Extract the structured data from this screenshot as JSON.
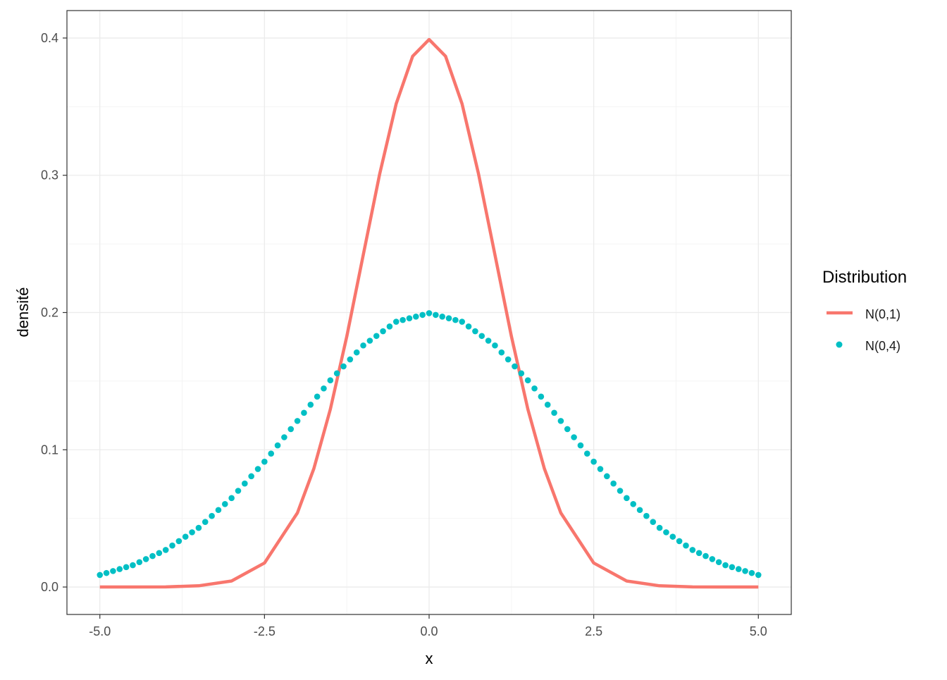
{
  "chart_data": {
    "type": "line",
    "xlabel": "x",
    "ylabel": "densité",
    "xlim": [
      -5.5,
      5.5
    ],
    "ylim": [
      -0.02,
      0.42
    ],
    "x_ticks": [
      -5.0,
      -2.5,
      0.0,
      2.5,
      5.0
    ],
    "x_tick_labels": [
      "-5.0",
      "-2.5",
      "0.0",
      "2.5",
      "5.0"
    ],
    "y_ticks": [
      0.0,
      0.1,
      0.2,
      0.3,
      0.4
    ],
    "y_tick_labels": [
      "0.0",
      "0.1",
      "0.2",
      "0.3",
      "0.4"
    ],
    "grid": true,
    "legend": {
      "title": "Distribution",
      "position": "right",
      "entries": [
        "N(0,1)",
        "N(0,4)"
      ]
    },
    "series": [
      {
        "name": "N(0,1)",
        "style": "line",
        "color": "#F8766D",
        "x": [
          -5.0,
          -4.5,
          -4.0,
          -3.5,
          -3.0,
          -2.5,
          -2.0,
          -1.75,
          -1.5,
          -1.25,
          -1.0,
          -0.75,
          -0.5,
          -0.25,
          0.0,
          0.25,
          0.5,
          0.75,
          1.0,
          1.25,
          1.5,
          1.75,
          2.0,
          2.5,
          3.0,
          3.5,
          4.0,
          4.5,
          5.0
        ],
        "y": [
          0.0,
          0.0,
          0.0001,
          0.0009,
          0.0044,
          0.0175,
          0.054,
          0.0863,
          0.1295,
          0.1826,
          0.242,
          0.3011,
          0.3521,
          0.3867,
          0.3989,
          0.3867,
          0.3521,
          0.3011,
          0.242,
          0.1826,
          0.1295,
          0.0863,
          0.054,
          0.0175,
          0.0044,
          0.0009,
          0.0001,
          0.0,
          0.0
        ]
      },
      {
        "name": "N(0,4)",
        "style": "points",
        "color": "#00BFC4",
        "x": [
          -5.0,
          -4.5,
          -4.0,
          -3.5,
          -3.0,
          -2.5,
          -2.0,
          -1.5,
          -1.0,
          -0.5,
          0.0,
          0.5,
          1.0,
          1.5,
          2.0,
          2.5,
          3.0,
          3.5,
          4.0,
          4.5,
          5.0
        ],
        "y": [
          0.0088,
          0.0159,
          0.027,
          0.0431,
          0.0648,
          0.0913,
          0.121,
          0.1506,
          0.176,
          0.1933,
          0.1995,
          0.1933,
          0.176,
          0.1506,
          0.121,
          0.0913,
          0.0648,
          0.0431,
          0.027,
          0.0159,
          0.0088
        ]
      }
    ]
  }
}
